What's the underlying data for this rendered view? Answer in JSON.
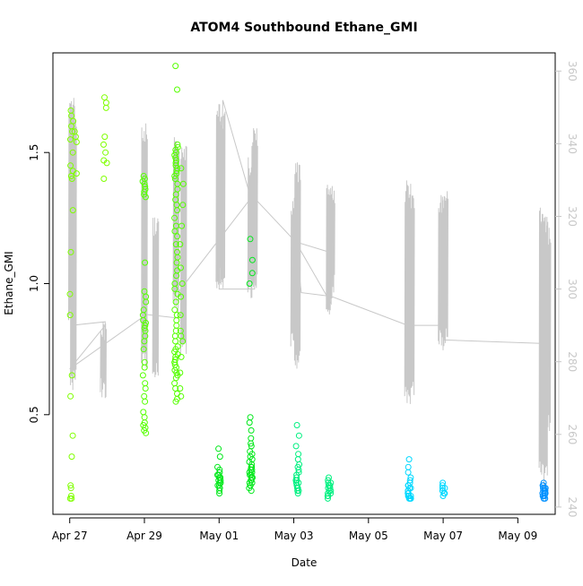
{
  "chart_data": {
    "type": "scatter",
    "title": "ATOM4 Southbound Ethane_GMI",
    "xlabel": "Date",
    "ylabel": "Ethane_GMI",
    "y2label": "",
    "x_ticks": [
      "Apr 27",
      "Apr 29",
      "May 01",
      "May 03",
      "May 05",
      "May 07",
      "May 09"
    ],
    "x_tick_days": [
      0,
      2,
      4,
      6,
      8,
      10,
      12
    ],
    "xlim_days": [
      -0.45,
      13.0
    ],
    "y_ticks": [
      "0.5",
      "1.0",
      "1.5"
    ],
    "y_tick_values": [
      0.5,
      1.0,
      1.5
    ],
    "ylim": [
      0.12,
      1.88
    ],
    "y2_ticks": [
      "240",
      "260",
      "280",
      "300",
      "320",
      "340",
      "360"
    ],
    "y2_tick_values": [
      240,
      260,
      280,
      300,
      320,
      340,
      360
    ],
    "y2lim": [
      238,
      365
    ],
    "grid": false,
    "secondary_line_color": "#c8c8c8",
    "series": [
      {
        "color": "#7fff00",
        "clusters": [
          {
            "x": 0.05,
            "y": [
              1.66,
              1.64,
              1.62,
              1.6,
              1.58,
              1.55,
              1.5,
              1.45,
              1.43,
              1.41,
              1.4,
              1.28,
              1.12,
              0.96,
              0.88,
              0.65,
              0.57,
              0.42,
              0.34,
              0.23,
              0.22,
              0.19,
              0.18,
              0.18
            ]
          },
          {
            "x": 0.15,
            "y": [
              1.58,
              1.56,
              1.54,
              1.42
            ]
          },
          {
            "x": 0.95,
            "y": [
              1.71,
              1.69,
              1.67,
              1.56,
              1.53,
              1.5,
              1.47,
              1.46,
              1.4
            ]
          }
        ]
      },
      {
        "color": "#55ff00",
        "clusters": [
          {
            "x": 2.0,
            "y": [
              1.41,
              1.4,
              1.39,
              1.38,
              1.37,
              1.36,
              1.35,
              1.34,
              1.33,
              1.08,
              0.97,
              0.95,
              0.93,
              0.9,
              0.88,
              0.86,
              0.85,
              0.84,
              0.83,
              0.82,
              0.8,
              0.78,
              0.75,
              0.7,
              0.68,
              0.65,
              0.62,
              0.6,
              0.57,
              0.55,
              0.51,
              0.49,
              0.47,
              0.46,
              0.45,
              0.44,
              0.43
            ]
          },
          {
            "x": 2.85,
            "y": [
              1.83,
              1.74,
              1.53,
              1.52,
              1.51,
              1.5,
              1.49,
              1.48,
              1.47,
              1.46,
              1.45,
              1.44,
              1.43,
              1.42,
              1.41,
              1.4,
              1.38,
              1.36,
              1.34,
              1.32,
              1.3,
              1.28,
              1.25,
              1.22,
              1.2,
              1.18,
              1.15,
              1.12,
              1.1,
              1.08,
              1.05,
              1.03,
              1.0,
              0.98,
              0.96,
              0.93,
              0.9,
              0.88,
              0.86,
              0.84,
              0.82,
              0.8,
              0.78,
              0.76,
              0.75,
              0.74,
              0.73,
              0.72,
              0.71,
              0.7,
              0.7,
              0.69,
              0.68,
              0.67,
              0.66,
              0.65,
              0.64,
              0.62,
              0.6,
              0.58,
              0.56,
              0.55
            ]
          },
          {
            "x": 3.0,
            "y": [
              1.44,
              1.38,
              1.3,
              1.22,
              1.15,
              1.06,
              1.0,
              0.95,
              0.88,
              0.82,
              0.8,
              0.78,
              0.72,
              0.66,
              0.6,
              0.57
            ]
          }
        ]
      },
      {
        "color": "#00e81a",
        "clusters": [
          {
            "x": 4.0,
            "y": [
              0.37,
              0.34,
              0.3,
              0.29,
              0.28,
              0.27,
              0.27,
              0.26,
              0.26,
              0.25,
              0.25,
              0.24,
              0.24,
              0.23,
              0.23,
              0.22,
              0.22,
              0.21,
              0.2
            ]
          },
          {
            "x": 4.85,
            "y": [
              1.17,
              1.09,
              1.04,
              1.0,
              0.49,
              0.47,
              0.44,
              0.41,
              0.39,
              0.38,
              0.36,
              0.35,
              0.34,
              0.33,
              0.32,
              0.31,
              0.3,
              0.3,
              0.29,
              0.29,
              0.28,
              0.28,
              0.27,
              0.27,
              0.26,
              0.26,
              0.25,
              0.25,
              0.24,
              0.24,
              0.23,
              0.23,
              0.22,
              0.21
            ]
          }
        ]
      },
      {
        "color": "#00f080",
        "clusters": [
          {
            "x": 6.1,
            "y": [
              0.46,
              0.42,
              0.38,
              0.35,
              0.33,
              0.31,
              0.3,
              0.29,
              0.28,
              0.27,
              0.26,
              0.25,
              0.25,
              0.24,
              0.24,
              0.23,
              0.23,
              0.22,
              0.22,
              0.21,
              0.21,
              0.2
            ]
          },
          {
            "x": 6.95,
            "y": [
              0.26,
              0.25,
              0.24,
              0.24,
              0.23,
              0.23,
              0.22,
              0.22,
              0.21,
              0.21,
              0.2,
              0.2,
              0.19,
              0.19,
              0.18
            ]
          }
        ]
      },
      {
        "color": "#00d8ff",
        "clusters": [
          {
            "x": 9.1,
            "y": [
              0.33,
              0.3,
              0.28,
              0.26,
              0.25,
              0.24,
              0.23,
              0.23,
              0.22,
              0.22,
              0.21,
              0.21,
              0.2,
              0.2,
              0.2,
              0.19,
              0.19,
              0.19,
              0.18,
              0.18,
              0.18
            ]
          },
          {
            "x": 10.0,
            "y": [
              0.24,
              0.23,
              0.22,
              0.22,
              0.21,
              0.21,
              0.2,
              0.2,
              0.19
            ]
          }
        ]
      },
      {
        "color": "#0090ff",
        "clusters": [
          {
            "x": 12.7,
            "y": [
              0.24,
              0.23,
              0.23,
              0.22,
              0.22,
              0.22,
              0.21,
              0.21,
              0.21,
              0.2,
              0.2,
              0.2,
              0.19,
              0.19,
              0.19,
              0.18,
              0.18
            ]
          }
        ]
      }
    ],
    "secondary": {
      "connectors": [
        [
          0.05,
          290
        ],
        [
          0.95,
          291
        ],
        [
          0.95,
          270
        ],
        [
          0.95,
          290
        ],
        [
          0.0,
          278
        ],
        [
          2.05,
          293
        ],
        [
          2.9,
          292
        ],
        [
          2.9,
          299
        ],
        [
          4.85,
          325
        ],
        [
          4.1,
          352
        ],
        [
          4.0,
          300
        ],
        [
          4.95,
          300
        ],
        [
          4.95,
          325
        ],
        [
          6.05,
          313
        ],
        [
          7.0,
          296
        ],
        [
          7.0,
          310
        ],
        [
          6.05,
          313
        ],
        [
          6.2,
          299
        ],
        [
          7.0,
          298
        ],
        [
          9.05,
          290
        ],
        [
          10.0,
          290
        ],
        [
          10.0,
          286
        ],
        [
          12.7,
          285
        ],
        [
          12.7,
          245
        ]
      ],
      "bursts": [
        {
          "x": 0.05,
          "low": 290,
          "high": 353
        },
        {
          "x": 0.1,
          "low": 272,
          "high": 350
        },
        {
          "x": 0.9,
          "low": 270,
          "high": 291
        },
        {
          "x": 2.0,
          "low": 278,
          "high": 346
        },
        {
          "x": 2.3,
          "low": 275,
          "high": 320
        },
        {
          "x": 2.85,
          "low": 295,
          "high": 342
        },
        {
          "x": 3.05,
          "low": 280,
          "high": 340
        },
        {
          "x": 4.0,
          "low": 300,
          "high": 351
        },
        {
          "x": 4.08,
          "low": 300,
          "high": 349
        },
        {
          "x": 4.85,
          "low": 297,
          "high": 337
        },
        {
          "x": 4.95,
          "low": 300,
          "high": 345
        },
        {
          "x": 6.0,
          "low": 282,
          "high": 326
        },
        {
          "x": 6.1,
          "low": 278,
          "high": 335
        },
        {
          "x": 6.95,
          "low": 292,
          "high": 330
        },
        {
          "x": 7.02,
          "low": 298,
          "high": 328
        },
        {
          "x": 9.05,
          "low": 268,
          "high": 330
        },
        {
          "x": 9.15,
          "low": 270,
          "high": 326
        },
        {
          "x": 9.95,
          "low": 283,
          "high": 326
        },
        {
          "x": 10.05,
          "low": 285,
          "high": 328
        },
        {
          "x": 12.65,
          "low": 248,
          "high": 323
        },
        {
          "x": 12.72,
          "low": 246,
          "high": 321
        },
        {
          "x": 12.8,
          "low": 260,
          "high": 318
        }
      ]
    }
  }
}
